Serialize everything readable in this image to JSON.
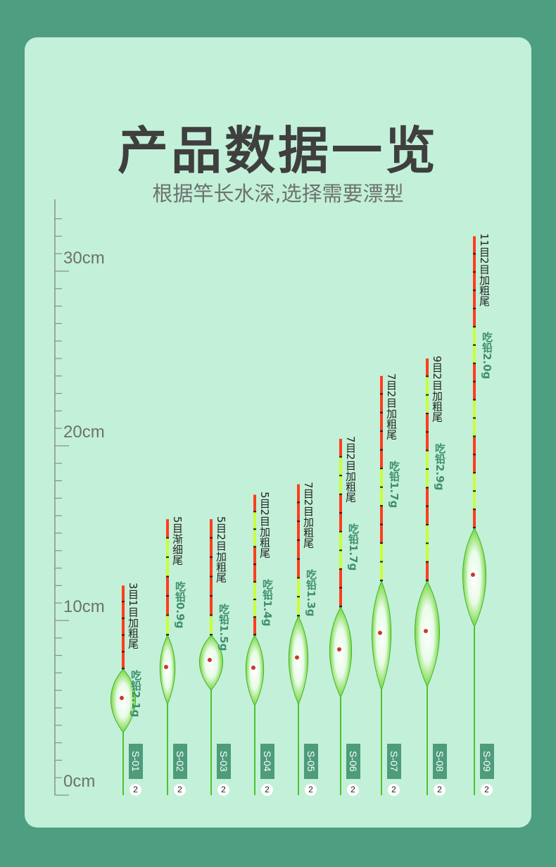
{
  "title": "产品数据一览",
  "subtitle": "根据竿长水深,选择需要漂型",
  "ruler": {
    "labels": [
      "30cm",
      "20cm",
      "10cm",
      "0cm"
    ]
  },
  "floats": [
    {
      "model": "S-01",
      "number": "2",
      "spec": "3目1目加粗尾",
      "weight": "吃铅2.1g",
      "top_cm": 12.0
    },
    {
      "model": "S-02",
      "number": "2",
      "spec": "5目渐细尾",
      "weight": "吃铅0.9g",
      "top_cm": 15.8
    },
    {
      "model": "S-03",
      "number": "2",
      "spec": "5目2目加粗尾",
      "weight": "吃铅1.5g",
      "top_cm": 15.8
    },
    {
      "model": "S-04",
      "number": "2",
      "spec": "5目2目加粗尾",
      "weight": "吃铅1.4g",
      "top_cm": 17.2
    },
    {
      "model": "S-05",
      "number": "2",
      "spec": "7目2目加粗尾",
      "weight": "吃铅1.3g",
      "top_cm": 17.8
    },
    {
      "model": "S-06",
      "number": "2",
      "spec": "7目2目加粗尾",
      "weight": "吃铅1.7g",
      "top_cm": 20.4
    },
    {
      "model": "S-07",
      "number": "2",
      "spec": "7目2目加粗尾",
      "weight": "吃铅1.7g",
      "top_cm": 24.0
    },
    {
      "model": "S-08",
      "number": "2",
      "spec": "9目2目加粗尾",
      "weight": "吃铅2.9g",
      "top_cm": 25.0
    },
    {
      "model": "S-09",
      "number": "2",
      "spec": "11目2目加粗尾",
      "weight": "吃铅2.0g",
      "top_cm": 32.0
    }
  ],
  "colors": {
    "background": "#4e9f82",
    "card": "#c3f0d8",
    "tip_red": "#ff3d1f",
    "tip_green": "#c8ff3a",
    "body_green": "#5fd13a",
    "tag": "#4d9c7b"
  }
}
